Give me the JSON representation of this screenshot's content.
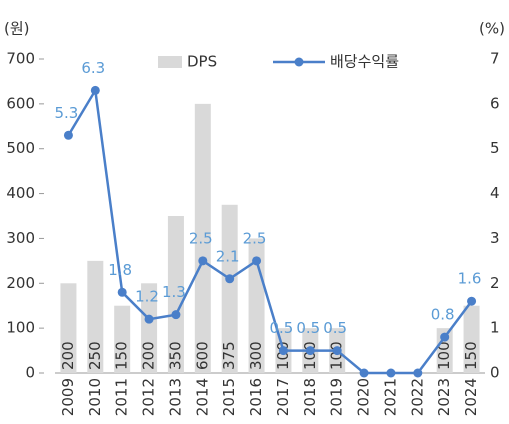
{
  "chart_data": {
    "type": "bar-line",
    "ylabel": "(원)",
    "y2label": "(%)",
    "categories": [
      "2009",
      "2010",
      "2011",
      "2012",
      "2013",
      "2014",
      "2015",
      "2016",
      "2017",
      "2018",
      "2019",
      "2020",
      "2021",
      "2022",
      "2023",
      "2024"
    ],
    "series": [
      {
        "name": "DPS",
        "type": "bar",
        "color": "#d9d9d9",
        "values": [
          200,
          250,
          150,
          200,
          350,
          600,
          375,
          300,
          100,
          100,
          100,
          0,
          0,
          0,
          100,
          150
        ],
        "value_labels": [
          "200",
          "250",
          "150",
          "200",
          "350",
          "600",
          "375",
          "300",
          "100",
          "100",
          "100",
          null,
          null,
          null,
          "100",
          "150"
        ]
      },
      {
        "name": "배당수익률",
        "type": "line",
        "axis": "y2",
        "color": "#4a7fc9",
        "values": [
          5.3,
          6.3,
          1.8,
          1.2,
          1.3,
          2.5,
          2.1,
          2.5,
          0.5,
          0.5,
          0.5,
          0,
          0,
          0,
          0.8,
          1.6
        ],
        "value_labels": [
          "5.3",
          "6.3",
          "1.8",
          "1.2",
          "1.3",
          "2.5",
          "2.1",
          "2.5",
          "0.5",
          "0.5",
          "0.5",
          null,
          null,
          null,
          "0.8",
          "1.6"
        ]
      }
    ],
    "ylim": [
      0,
      700
    ],
    "yticks": [
      0,
      100,
      200,
      300,
      400,
      500,
      600,
      700
    ],
    "y2lim": [
      0,
      7
    ],
    "y2ticks": [
      0,
      1,
      2,
      3,
      4,
      5,
      6,
      7
    ],
    "legend": "top"
  }
}
